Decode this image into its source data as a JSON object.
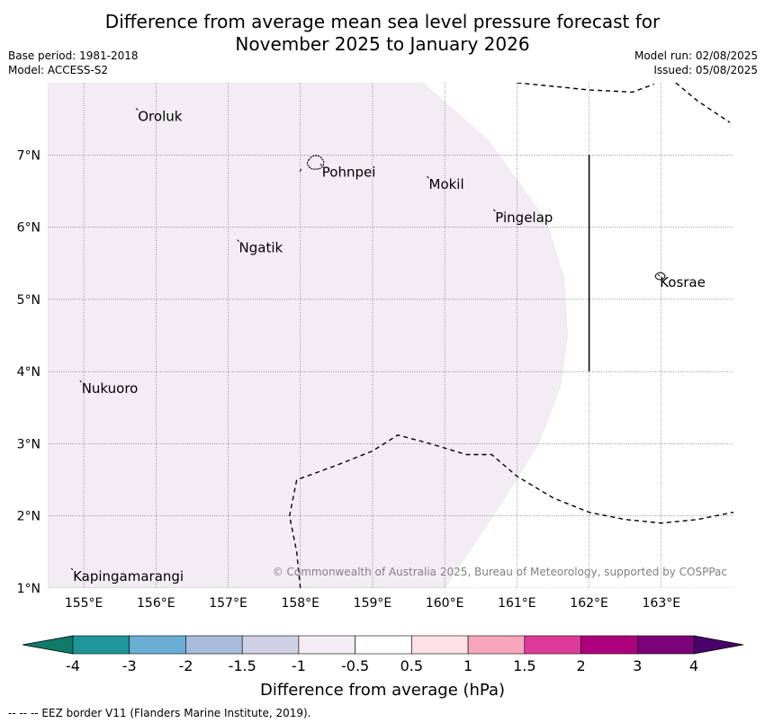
{
  "title_line1": "Difference from average mean sea level pressure forecast for",
  "title_line2": "November 2025 to January 2026",
  "base_period": "Base period: 1981-2018",
  "model": "Model: ACCESS-S2",
  "model_run": "Model run: 02/08/2025",
  "issued": "Issued: 05/08/2025",
  "credit": "© Commonwealth of Australia 2025, Bureau of Meteorology, supported by COSPPac",
  "footer": "--  --  -- EEZ border V11 (Flanders Marine Institute, 2019).",
  "map": {
    "lon_range": [
      154.5,
      164
    ],
    "lat_range": [
      1,
      8
    ],
    "lon_ticks": [
      {
        "value": 155,
        "label": "155°E"
      },
      {
        "value": 156,
        "label": "156°E"
      },
      {
        "value": 157,
        "label": "157°E"
      },
      {
        "value": 158,
        "label": "158°E"
      },
      {
        "value": 159,
        "label": "159°E"
      },
      {
        "value": 160,
        "label": "160°E"
      },
      {
        "value": 161,
        "label": "161°E"
      },
      {
        "value": 162,
        "label": "162°E"
      },
      {
        "value": 163,
        "label": "163°E"
      }
    ],
    "lat_ticks": [
      {
        "value": 7,
        "label": "7°N"
      },
      {
        "value": 6,
        "label": "6°N"
      },
      {
        "value": 5,
        "label": "5°N"
      },
      {
        "value": 4,
        "label": "4°N"
      },
      {
        "value": 3,
        "label": "3°N"
      },
      {
        "value": 2,
        "label": "2°N"
      },
      {
        "value": 1,
        "label": "1°N"
      }
    ],
    "places": [
      {
        "name": "Oroluk",
        "lon": 155.75,
        "lat": 7.62
      },
      {
        "name": "Pohnpei",
        "lon": 158.3,
        "lat": 6.85
      },
      {
        "name": "Mokil",
        "lon": 159.78,
        "lat": 6.68
      },
      {
        "name": "Pingelap",
        "lon": 160.7,
        "lat": 6.22
      },
      {
        "name": "Ngatik",
        "lon": 157.15,
        "lat": 5.8
      },
      {
        "name": "Kosrae",
        "lon": 162.98,
        "lat": 5.32
      },
      {
        "name": "Nukuoro",
        "lon": 154.97,
        "lat": 3.85
      },
      {
        "name": "Kapingamarangi",
        "lon": 154.85,
        "lat": 1.25
      }
    ],
    "shading": {
      "category": "-1 to -0.5 hPa",
      "color": "#f4ecf5",
      "boundary": [
        [
          154.5,
          8
        ],
        [
          159.7,
          8
        ],
        [
          160.6,
          7.2
        ],
        [
          161.4,
          6.1
        ],
        [
          161.65,
          5.3
        ],
        [
          161.7,
          4.5
        ],
        [
          161.6,
          3.8
        ],
        [
          161.3,
          3.0
        ],
        [
          160.8,
          2.2
        ],
        [
          160.0,
          1.0
        ],
        [
          154.5,
          1.0
        ]
      ]
    },
    "eez_borders": [
      [
        [
          161.0,
          8
        ],
        [
          161.5,
          7.95
        ],
        [
          162.0,
          7.9
        ],
        [
          162.6,
          7.87
        ],
        [
          162.9,
          7.98
        ]
      ],
      [
        [
          163.2,
          8
        ],
        [
          163.5,
          7.75
        ],
        [
          163.95,
          7.45
        ]
      ],
      [
        [
          158.0,
          1.0
        ],
        [
          157.95,
          1.5
        ],
        [
          157.85,
          2.0
        ],
        [
          157.95,
          2.5
        ],
        [
          158.5,
          2.7
        ],
        [
          159.0,
          2.9
        ],
        [
          159.35,
          3.12
        ],
        [
          159.8,
          3.0
        ],
        [
          160.3,
          2.85
        ],
        [
          160.65,
          2.85
        ],
        [
          161.0,
          2.55
        ],
        [
          161.5,
          2.25
        ],
        [
          162.0,
          2.05
        ],
        [
          162.5,
          1.95
        ],
        [
          163.0,
          1.9
        ],
        [
          163.5,
          1.95
        ],
        [
          164.0,
          2.05
        ]
      ]
    ],
    "boundary_line": {
      "lon": 162,
      "lat_from": 4,
      "lat_to": 7
    }
  },
  "colorbar": {
    "title": "Difference from average (hPa)",
    "colors": [
      "#0e7b69",
      "#1e9598",
      "#6aaed6",
      "#a7bcdc",
      "#d0d1e6",
      "#f4ecf5",
      "#ffffff",
      "#ffe0e4",
      "#f7a6bb",
      "#df3a9b",
      "#ae017e",
      "#7a0177",
      "#49006a"
    ],
    "labels": [
      "-4",
      "-3",
      "-2",
      "-1.5",
      "-1",
      "-0.5",
      "0.5",
      "1",
      "1.5",
      "2",
      "3",
      "4"
    ]
  }
}
